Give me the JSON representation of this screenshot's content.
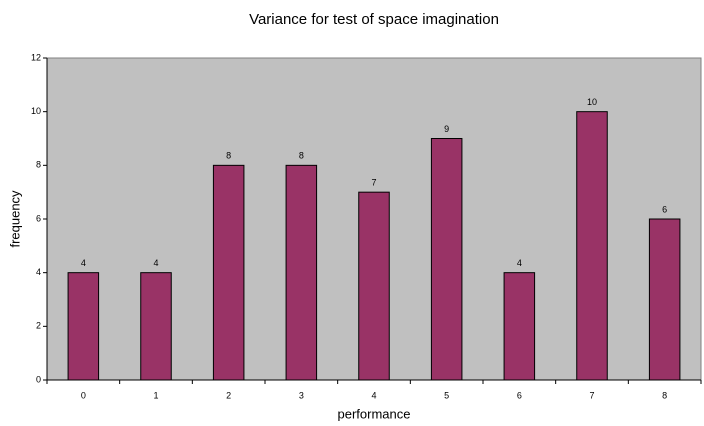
{
  "chart_data": {
    "type": "bar",
    "title": "Variance for test of space imagination",
    "x_label": "performance",
    "y_label": "frequency",
    "categories": [
      "0",
      "1",
      "2",
      "3",
      "4",
      "5",
      "6",
      "7",
      "8"
    ],
    "values": [
      4,
      4,
      8,
      8,
      7,
      9,
      4,
      10,
      6
    ],
    "color": "#993366",
    "plot_background": "#c0c0c0",
    "ylim": [
      0,
      12
    ],
    "yticks": [
      0,
      2,
      4,
      6,
      8,
      10,
      12
    ],
    "grid": false
  }
}
